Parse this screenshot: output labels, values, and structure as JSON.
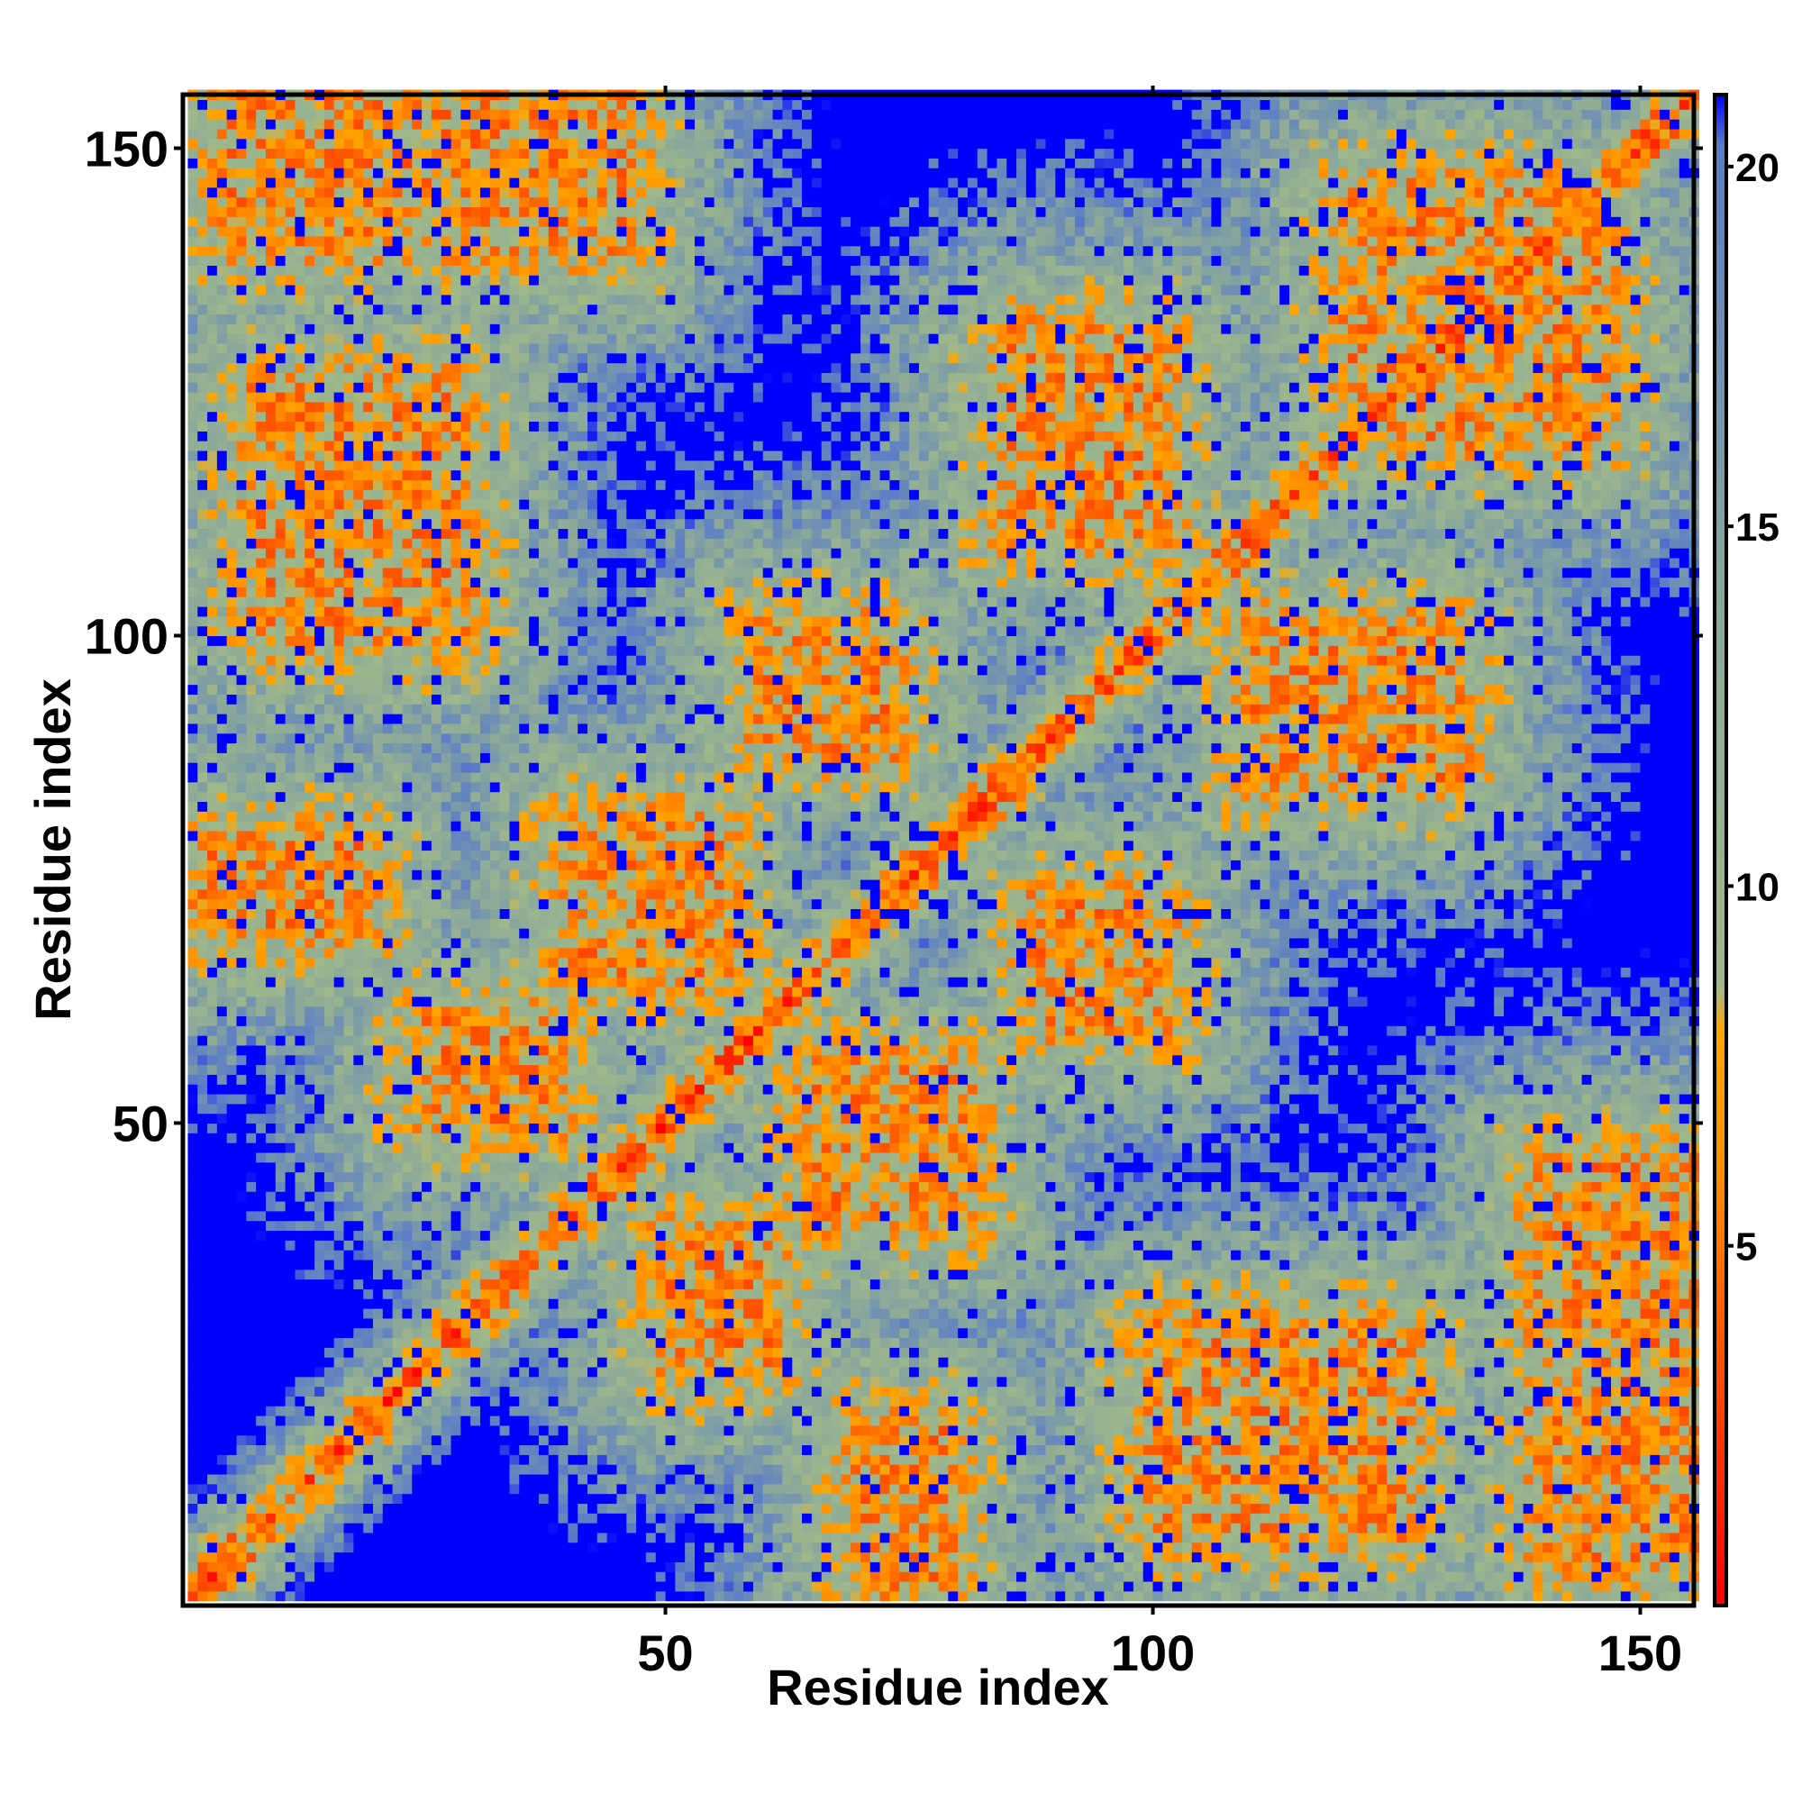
{
  "chart_data": {
    "type": "heatmap",
    "title": "",
    "xlabel": "Residue index",
    "ylabel": "Residue index",
    "n_residues": 155,
    "xlim": [
      1,
      155
    ],
    "ylim": [
      1,
      155
    ],
    "x_ticks": [
      50,
      100,
      150
    ],
    "y_ticks": [
      50,
      100,
      150
    ],
    "colorbar": {
      "ticks": [
        5,
        10,
        15,
        20
      ],
      "range": [
        0,
        21
      ],
      "cap_value": 21,
      "stops": [
        {
          "value": 0,
          "color": "#ff0000"
        },
        {
          "value": 6,
          "color": "#ff8c00"
        },
        {
          "value": 8,
          "color": "#ffa500"
        },
        {
          "value": 8.6,
          "color": "#9fb88a"
        },
        {
          "value": 14,
          "color": "#8aa89a"
        },
        {
          "value": 20.3,
          "color": "#5a7cc8"
        },
        {
          "value": 21,
          "color": "#0000ff"
        }
      ]
    },
    "matrix_description": "Pairwise residue distance map (symmetric); near-diagonal distances low (red), distant pairs above cap (blue)",
    "contact_blocks": [
      {
        "a": [
          2,
          18
        ],
        "b": [
          70,
          78
        ]
      },
      {
        "a": [
          25,
          38
        ],
        "b": [
          50,
          60
        ]
      },
      {
        "a": [
          40,
          55
        ],
        "b": [
          65,
          80
        ]
      },
      {
        "a": [
          85,
          100
        ],
        "b": [
          110,
          130
        ]
      },
      {
        "a": [
          8,
          28
        ],
        "b": [
          100,
          125
        ]
      },
      {
        "a": [
          95,
          115
        ],
        "b": [
          20,
          35
        ]
      },
      {
        "a": [
          120,
          140
        ],
        "b": [
          125,
          145
        ]
      },
      {
        "a": [
          5,
          45
        ],
        "b": [
          140,
          155
        ]
      },
      {
        "a": [
          140,
          155
        ],
        "b": [
          25,
          50
        ]
      },
      {
        "a": [
          60,
          72
        ],
        "b": [
          88,
          100
        ]
      }
    ]
  }
}
